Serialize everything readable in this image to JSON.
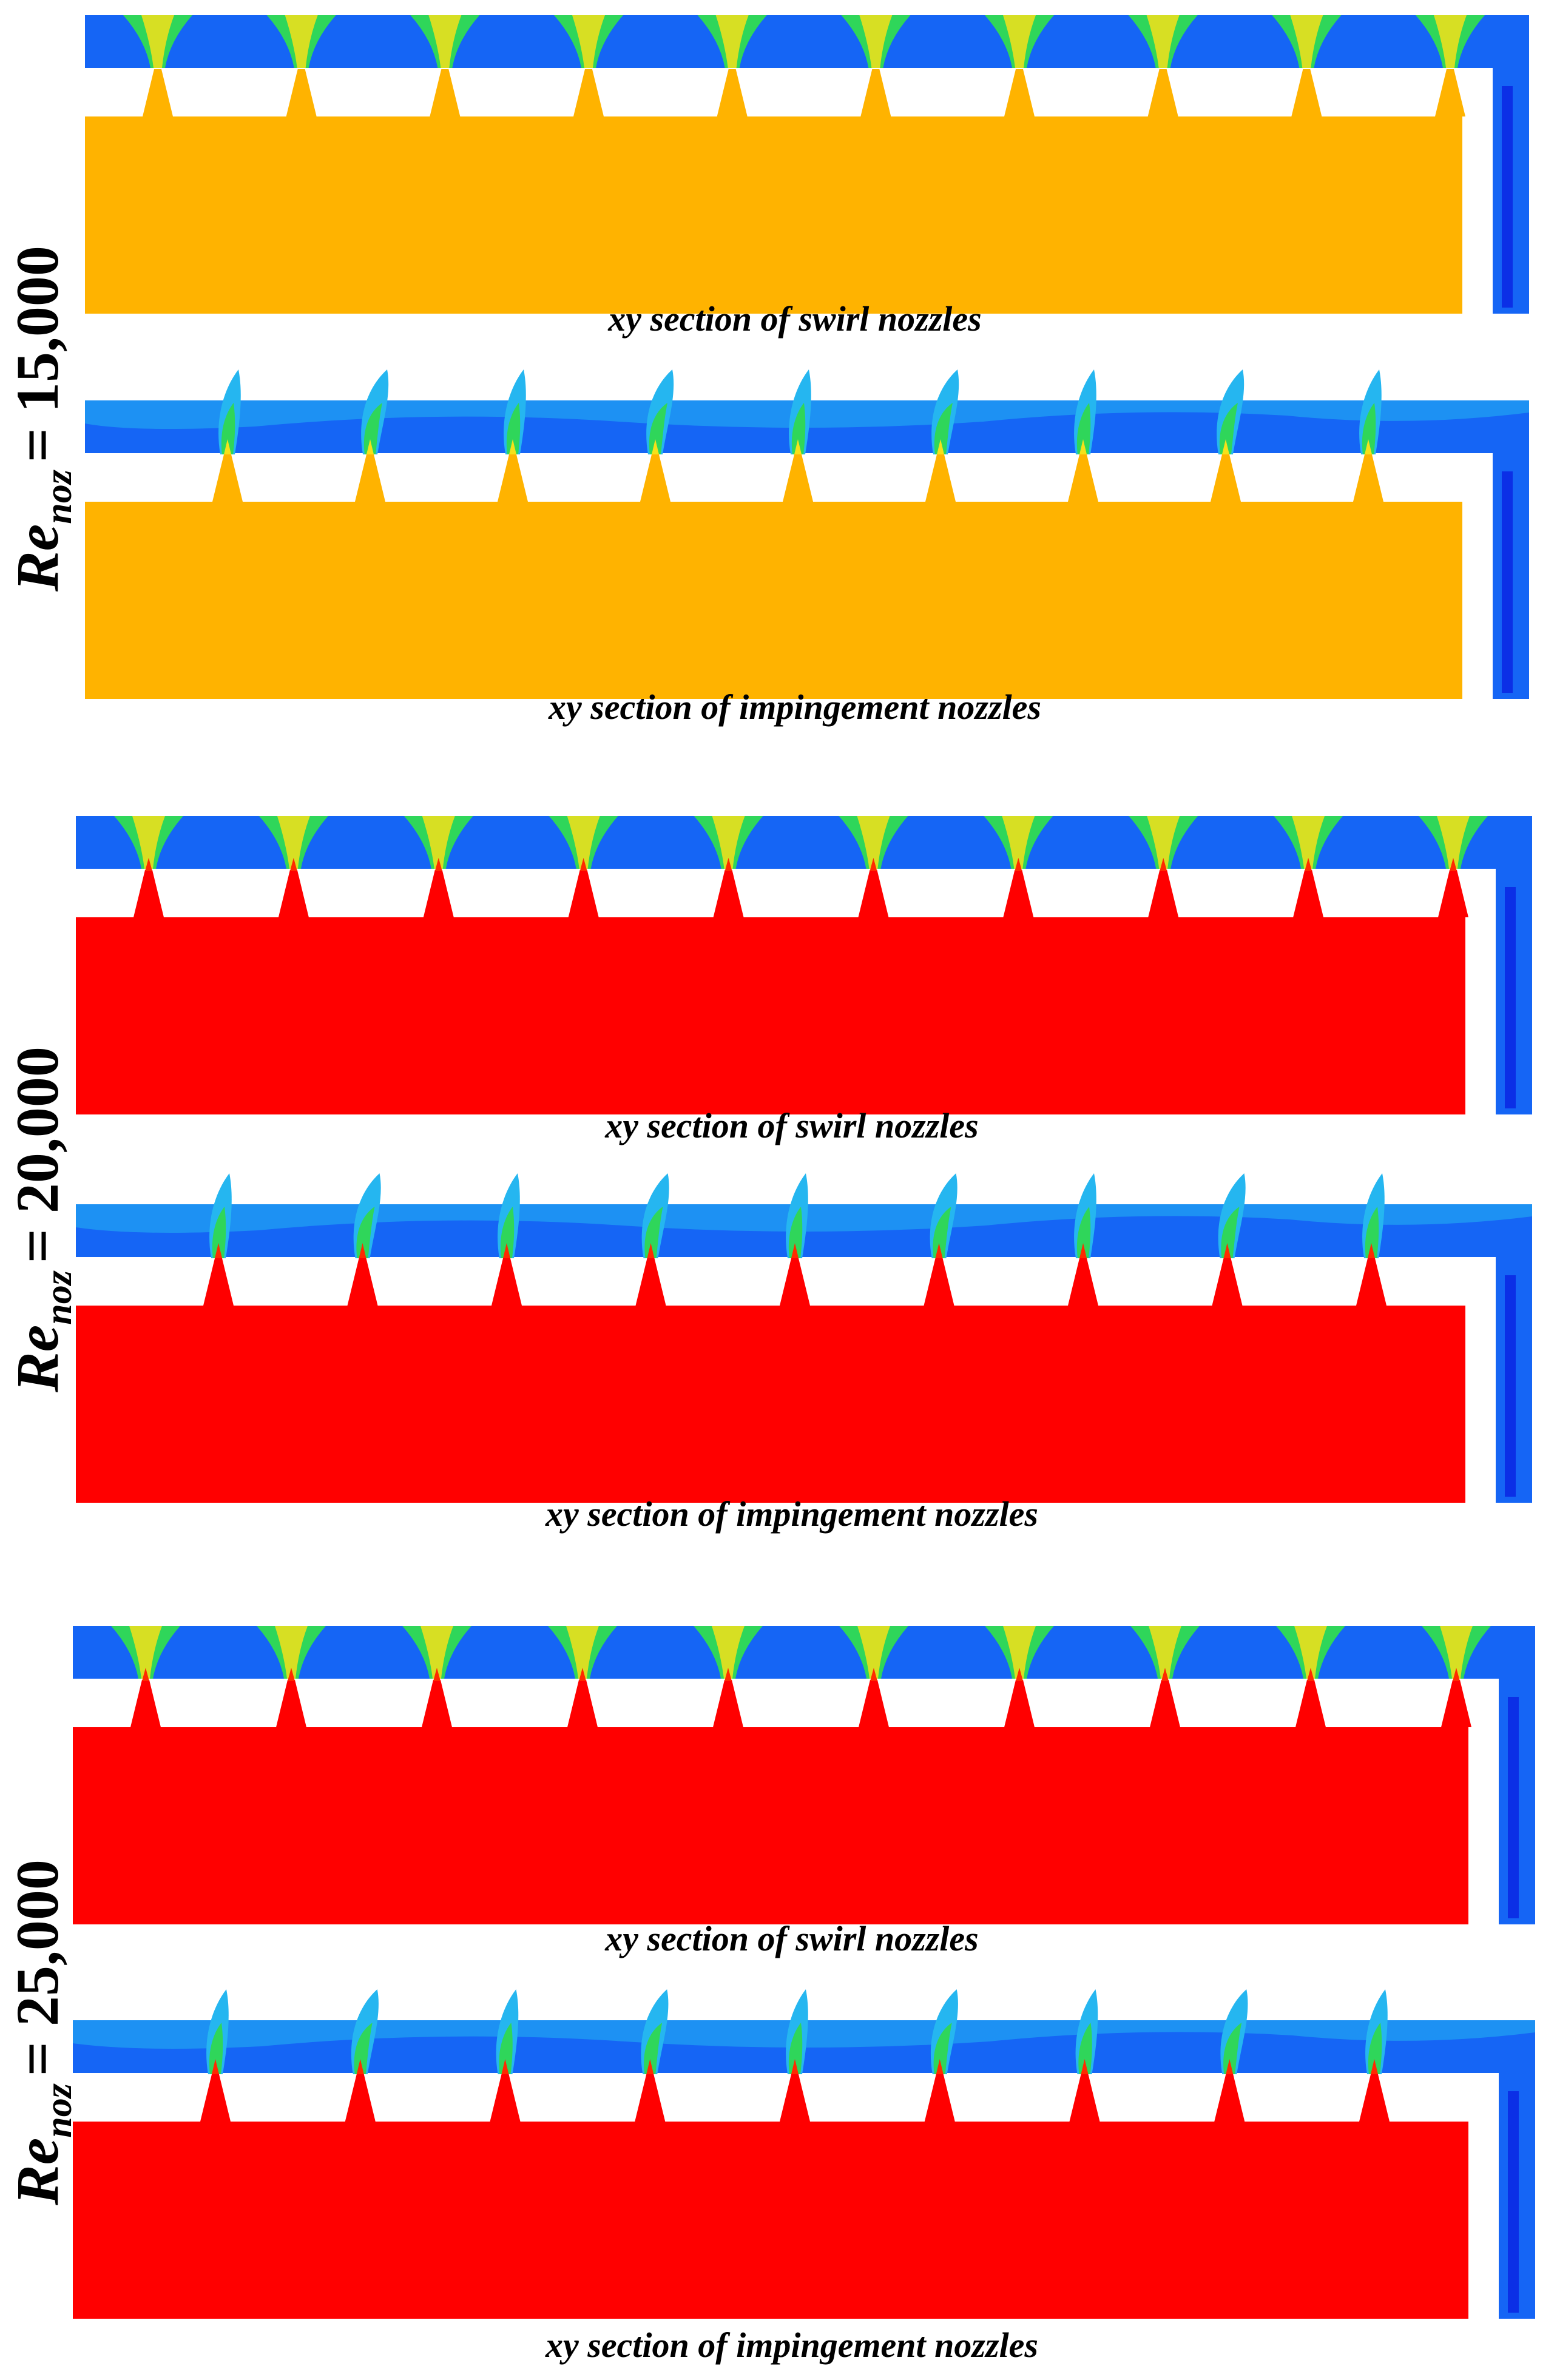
{
  "figure": {
    "groups": [
      {
        "re_symbol": "Re",
        "re_subscript": "noz",
        "re_value": "= 15,000",
        "solid_color": "#FFB300",
        "panels": [
          {
            "kind": "swirl",
            "caption": "xy section of swirl nozzles",
            "nozzle_count": 10
          },
          {
            "kind": "impingement",
            "caption": "xy section of impingement nozzles",
            "nozzle_count": 9
          }
        ]
      },
      {
        "re_symbol": "Re",
        "re_subscript": "noz",
        "re_value": "= 20,000",
        "solid_color": "#FF0000",
        "panels": [
          {
            "kind": "swirl",
            "caption": "xy section of swirl nozzles",
            "nozzle_count": 10
          },
          {
            "kind": "impingement",
            "caption": "xy section of impingement nozzles",
            "nozzle_count": 9
          }
        ]
      },
      {
        "re_symbol": "Re",
        "re_subscript": "noz",
        "re_value": "= 25,000",
        "solid_color": "#FF0000",
        "panels": [
          {
            "kind": "swirl",
            "caption": "xy section of swirl nozzles",
            "nozzle_count": 10
          },
          {
            "kind": "impingement",
            "caption": "xy section of impingement nozzles",
            "nozzle_count": 9
          }
        ]
      }
    ],
    "colors": {
      "fluid": "#1565F5",
      "fluid_light": "#25B6F0",
      "jet_green": "#2FD65A",
      "jet_yellow": "#F5E11A",
      "jet_red": "#FF2A00",
      "wall_deep": "#0B2FE6",
      "background": "#FFFFFF"
    }
  }
}
